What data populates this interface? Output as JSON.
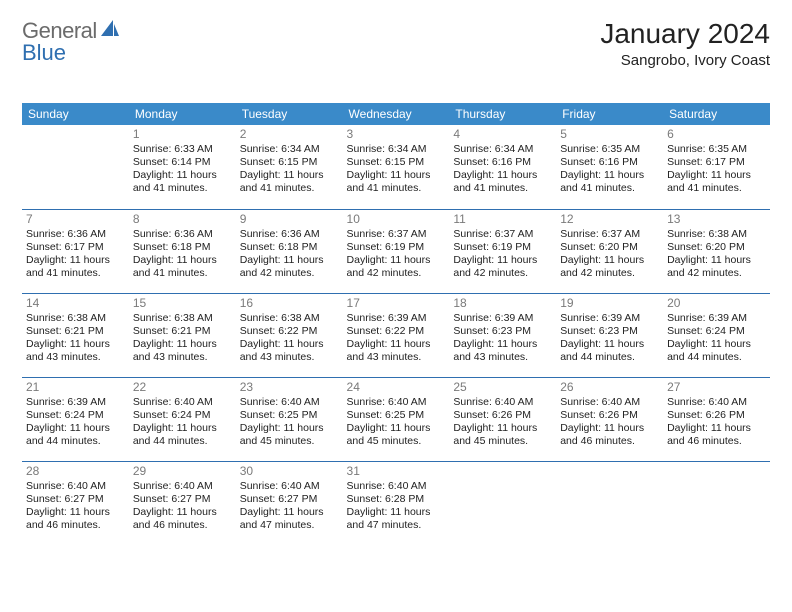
{
  "logo": {
    "text1": "General",
    "text2": "Blue"
  },
  "title": "January 2024",
  "location": "Sangrobo, Ivory Coast",
  "colors": {
    "header_bg": "#3a8ac9",
    "header_fg": "#ffffff",
    "row_border": "#2f6fb0",
    "daynum": "#7a7a7a",
    "logo_gray": "#6b6b6b",
    "logo_blue": "#2f6fb0"
  },
  "weekdays": [
    "Sunday",
    "Monday",
    "Tuesday",
    "Wednesday",
    "Thursday",
    "Friday",
    "Saturday"
  ],
  "weeks": [
    [
      null,
      {
        "n": "1",
        "sr": "6:33 AM",
        "ss": "6:14 PM",
        "dl": "11 hours and 41 minutes."
      },
      {
        "n": "2",
        "sr": "6:34 AM",
        "ss": "6:15 PM",
        "dl": "11 hours and 41 minutes."
      },
      {
        "n": "3",
        "sr": "6:34 AM",
        "ss": "6:15 PM",
        "dl": "11 hours and 41 minutes."
      },
      {
        "n": "4",
        "sr": "6:34 AM",
        "ss": "6:16 PM",
        "dl": "11 hours and 41 minutes."
      },
      {
        "n": "5",
        "sr": "6:35 AM",
        "ss": "6:16 PM",
        "dl": "11 hours and 41 minutes."
      },
      {
        "n": "6",
        "sr": "6:35 AM",
        "ss": "6:17 PM",
        "dl": "11 hours and 41 minutes."
      }
    ],
    [
      {
        "n": "7",
        "sr": "6:36 AM",
        "ss": "6:17 PM",
        "dl": "11 hours and 41 minutes."
      },
      {
        "n": "8",
        "sr": "6:36 AM",
        "ss": "6:18 PM",
        "dl": "11 hours and 41 minutes."
      },
      {
        "n": "9",
        "sr": "6:36 AM",
        "ss": "6:18 PM",
        "dl": "11 hours and 42 minutes."
      },
      {
        "n": "10",
        "sr": "6:37 AM",
        "ss": "6:19 PM",
        "dl": "11 hours and 42 minutes."
      },
      {
        "n": "11",
        "sr": "6:37 AM",
        "ss": "6:19 PM",
        "dl": "11 hours and 42 minutes."
      },
      {
        "n": "12",
        "sr": "6:37 AM",
        "ss": "6:20 PM",
        "dl": "11 hours and 42 minutes."
      },
      {
        "n": "13",
        "sr": "6:38 AM",
        "ss": "6:20 PM",
        "dl": "11 hours and 42 minutes."
      }
    ],
    [
      {
        "n": "14",
        "sr": "6:38 AM",
        "ss": "6:21 PM",
        "dl": "11 hours and 43 minutes."
      },
      {
        "n": "15",
        "sr": "6:38 AM",
        "ss": "6:21 PM",
        "dl": "11 hours and 43 minutes."
      },
      {
        "n": "16",
        "sr": "6:38 AM",
        "ss": "6:22 PM",
        "dl": "11 hours and 43 minutes."
      },
      {
        "n": "17",
        "sr": "6:39 AM",
        "ss": "6:22 PM",
        "dl": "11 hours and 43 minutes."
      },
      {
        "n": "18",
        "sr": "6:39 AM",
        "ss": "6:23 PM",
        "dl": "11 hours and 43 minutes."
      },
      {
        "n": "19",
        "sr": "6:39 AM",
        "ss": "6:23 PM",
        "dl": "11 hours and 44 minutes."
      },
      {
        "n": "20",
        "sr": "6:39 AM",
        "ss": "6:24 PM",
        "dl": "11 hours and 44 minutes."
      }
    ],
    [
      {
        "n": "21",
        "sr": "6:39 AM",
        "ss": "6:24 PM",
        "dl": "11 hours and 44 minutes."
      },
      {
        "n": "22",
        "sr": "6:40 AM",
        "ss": "6:24 PM",
        "dl": "11 hours and 44 minutes."
      },
      {
        "n": "23",
        "sr": "6:40 AM",
        "ss": "6:25 PM",
        "dl": "11 hours and 45 minutes."
      },
      {
        "n": "24",
        "sr": "6:40 AM",
        "ss": "6:25 PM",
        "dl": "11 hours and 45 minutes."
      },
      {
        "n": "25",
        "sr": "6:40 AM",
        "ss": "6:26 PM",
        "dl": "11 hours and 45 minutes."
      },
      {
        "n": "26",
        "sr": "6:40 AM",
        "ss": "6:26 PM",
        "dl": "11 hours and 46 minutes."
      },
      {
        "n": "27",
        "sr": "6:40 AM",
        "ss": "6:26 PM",
        "dl": "11 hours and 46 minutes."
      }
    ],
    [
      {
        "n": "28",
        "sr": "6:40 AM",
        "ss": "6:27 PM",
        "dl": "11 hours and 46 minutes."
      },
      {
        "n": "29",
        "sr": "6:40 AM",
        "ss": "6:27 PM",
        "dl": "11 hours and 46 minutes."
      },
      {
        "n": "30",
        "sr": "6:40 AM",
        "ss": "6:27 PM",
        "dl": "11 hours and 47 minutes."
      },
      {
        "n": "31",
        "sr": "6:40 AM",
        "ss": "6:28 PM",
        "dl": "11 hours and 47 minutes."
      },
      null,
      null,
      null
    ]
  ],
  "labels": {
    "sunrise": "Sunrise:",
    "sunset": "Sunset:",
    "daylight": "Daylight:"
  }
}
